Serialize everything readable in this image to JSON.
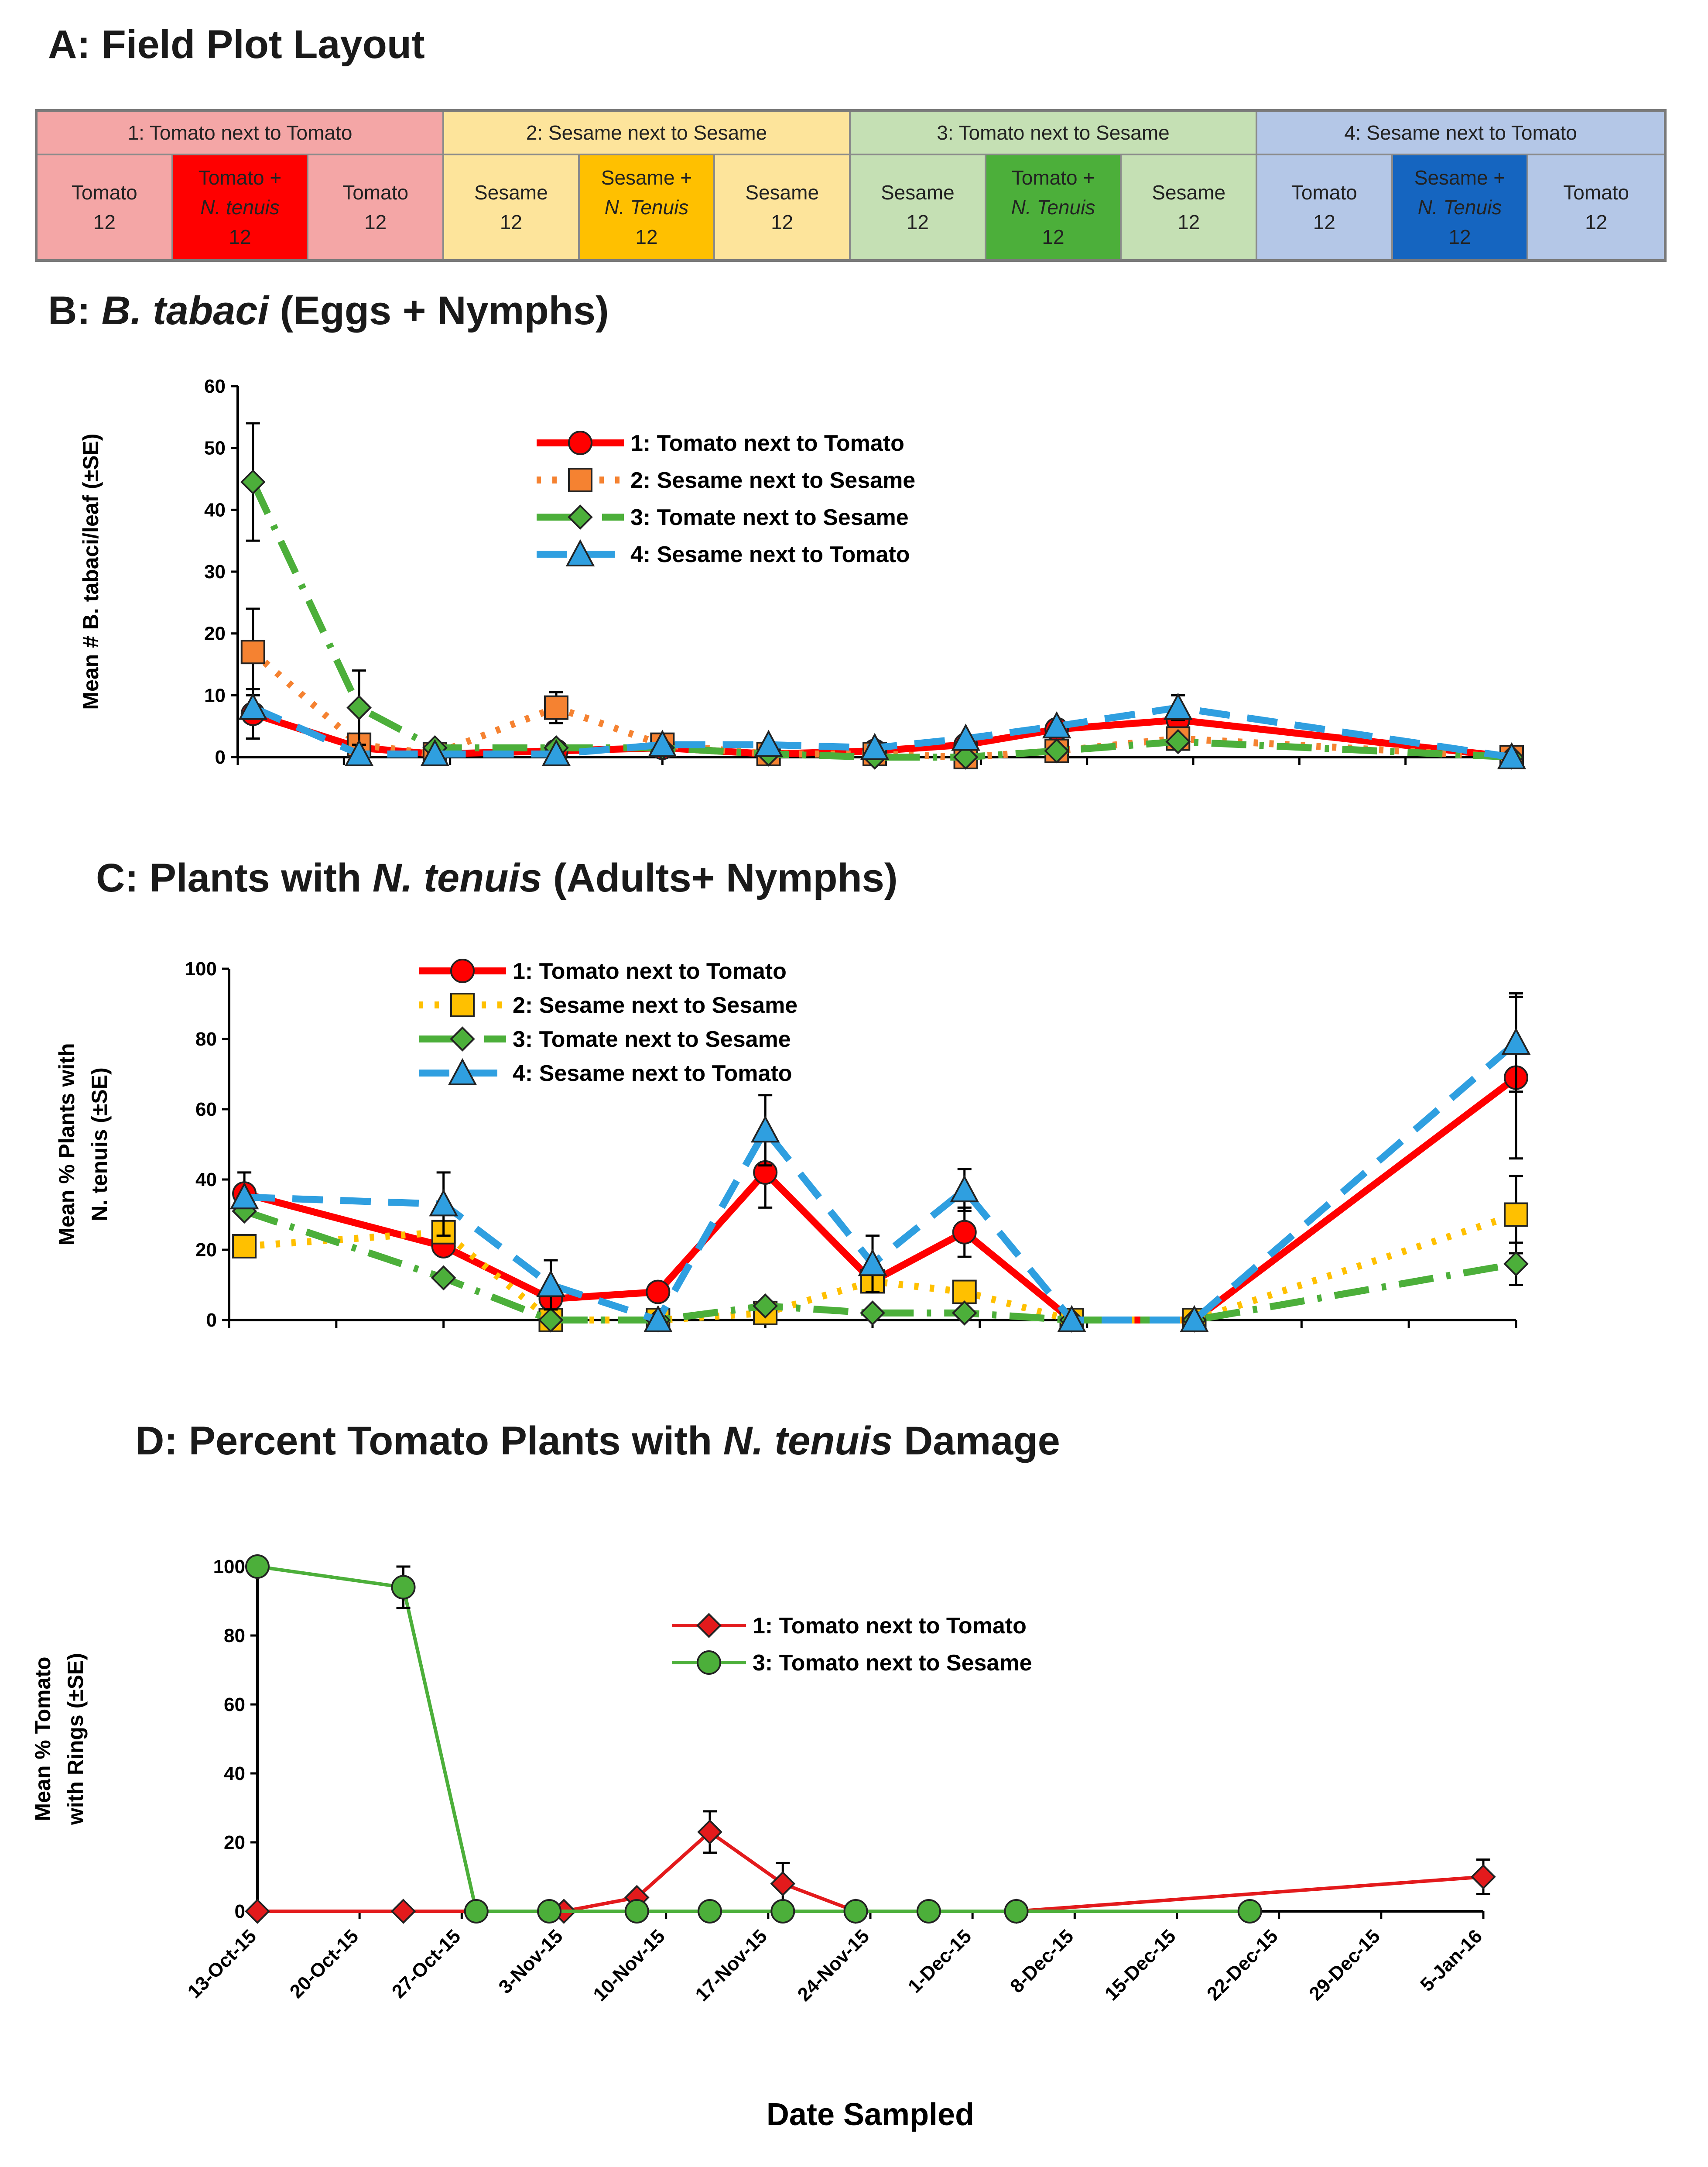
{
  "panel_a": {
    "title": "A: Field Plot Layout",
    "groups": [
      {
        "label": "1: Tomato next to Tomato",
        "cells": [
          {
            "line1": "Tomato",
            "line2": "",
            "line3": "12",
            "bg": "#f4a6a6"
          },
          {
            "line1": "Tomato +",
            "line2": "N. tenuis",
            "line3": "12",
            "bg": "#ff0000"
          },
          {
            "line1": "Tomato",
            "line2": "",
            "line3": "12",
            "bg": "#f4a6a6"
          }
        ],
        "head_bg": "#f4a6a6"
      },
      {
        "label": "2: Sesame next to Sesame",
        "cells": [
          {
            "line1": "Sesame",
            "line2": "",
            "line3": "12",
            "bg": "#fde49b"
          },
          {
            "line1": "Sesame +",
            "line2": "N. Tenuis",
            "line3": "12",
            "bg": "#ffc000"
          },
          {
            "line1": "Sesame",
            "line2": "",
            "line3": "12",
            "bg": "#fde49b"
          }
        ],
        "head_bg": "#fde49b"
      },
      {
        "label": "3: Tomato next to Sesame",
        "cells": [
          {
            "line1": "Sesame",
            "line2": "",
            "line3": "12",
            "bg": "#c5e0b4"
          },
          {
            "line1": "Tomato +",
            "line2": "N. Tenuis",
            "line3": "12",
            "bg": "#4caf3a"
          },
          {
            "line1": "Sesame",
            "line2": "",
            "line3": "12",
            "bg": "#c5e0b4"
          }
        ],
        "head_bg": "#c5e0b4"
      },
      {
        "label": "4: Sesame next to Tomato",
        "cells": [
          {
            "line1": "Tomato",
            "line2": "",
            "line3": "12",
            "bg": "#b4c7e7"
          },
          {
            "line1": "Sesame +",
            "line2": "N. Tenuis",
            "line3": "12",
            "bg": "#1565c0"
          },
          {
            "line1": "Tomato",
            "line2": "",
            "line3": "12",
            "bg": "#b4c7e7"
          }
        ],
        "head_bg": "#b4c7e7"
      }
    ]
  },
  "panel_b": {
    "title_prefix": "B: ",
    "title_italic": "B. tabaci",
    "title_suffix": " (Eggs + Nymphs)"
  },
  "panel_c": {
    "title_prefix": "C: Plants with ",
    "title_italic": "N. tenuis",
    "title_suffix": " (Adults+ Nymphs)"
  },
  "panel_d": {
    "title_prefix": "D: Percent Tomato Plants with ",
    "title_italic": "N. tenuis",
    "title_suffix": " Damage"
  },
  "chart_data": [
    {
      "type": "line",
      "title": "B: B. tabaci (Eggs + Nymphs)",
      "ylabel": "Mean # B. tabaci/leaf (±SE)",
      "ylim": [
        0,
        60
      ],
      "yticks": [
        0,
        10,
        20,
        30,
        40,
        50,
        60
      ],
      "xlim": [
        42290,
        42374
      ],
      "legend_position": "top-center",
      "series": [
        {
          "name": "1: Tomato next to Tomato",
          "color": "#ff0000",
          "marker": "circle",
          "dash": "solid",
          "x": [
            42291,
            42298,
            42303,
            42311,
            42318,
            42325,
            42332,
            42338,
            42344,
            42352,
            42374
          ],
          "y": [
            7,
            1.5,
            0.5,
            1,
            1.5,
            0.5,
            1,
            2,
            4.5,
            6,
            0
          ],
          "err": [
            4,
            0,
            0,
            0,
            0,
            0,
            0,
            0,
            0,
            0,
            0
          ]
        },
        {
          "name": "2: Sesame next to Sesame",
          "color": "#f58231",
          "marker": "square",
          "dash": "dotted",
          "x": [
            42291,
            42298,
            42303,
            42311,
            42318,
            42325,
            42332,
            42338,
            42344,
            42352,
            42374
          ],
          "y": [
            17,
            2,
            0.5,
            8,
            2,
            0.5,
            0.5,
            0,
            1,
            3,
            0
          ],
          "err": [
            7,
            0,
            0,
            2.5,
            0,
            0,
            0,
            0,
            0,
            0,
            0
          ]
        },
        {
          "name": "3: Tomate next to Sesame",
          "color": "#4caf3a",
          "marker": "diamond",
          "dash": "dashdot",
          "x": [
            42291,
            42298,
            42303,
            42311,
            42318,
            42325,
            42332,
            42338,
            42344,
            42352,
            42374
          ],
          "y": [
            44.5,
            8,
            1.5,
            1.5,
            1.5,
            0.5,
            0,
            0,
            1,
            2.5,
            0
          ],
          "err": [
            9.5,
            6,
            0,
            0,
            0,
            0,
            0,
            0,
            0,
            0,
            0
          ]
        },
        {
          "name": "4: Sesame next to Tomato",
          "color": "#2f9fe0",
          "marker": "triangle",
          "dash": "dashed",
          "x": [
            42291,
            42298,
            42303,
            42311,
            42318,
            42325,
            42332,
            42338,
            42344,
            42352,
            42374
          ],
          "y": [
            8,
            0.5,
            0.5,
            0.5,
            2,
            2,
            1.5,
            3,
            5,
            8,
            0
          ],
          "err": [
            0,
            0,
            0,
            0,
            0,
            0,
            0,
            0,
            0,
            2,
            0
          ]
        }
      ]
    },
    {
      "type": "line",
      "title": "C: Plants with N. tenuis (Adults+ Nymphs)",
      "ylabel": "Mean % Plants with N. tenuis (±SE)",
      "ylim": [
        0,
        100
      ],
      "yticks": [
        0,
        20,
        40,
        60,
        80,
        100
      ],
      "xlim": [
        42290,
        42374
      ],
      "legend_position": "top-center",
      "series": [
        {
          "name": "1: Tomato next to Tomato",
          "color": "#ff0000",
          "marker": "circle",
          "dash": "solid",
          "x": [
            42291,
            42304,
            42311,
            42318,
            42325,
            42332,
            42338,
            42345,
            42353,
            42374
          ],
          "y": [
            36,
            21,
            6,
            8,
            42,
            11,
            25,
            0,
            0,
            69
          ],
          "err": [
            6,
            0,
            0,
            0,
            10,
            0,
            7,
            0,
            0,
            23
          ]
        },
        {
          "name": "2: Sesame next to Sesame",
          "color": "#ffc000",
          "marker": "square",
          "dash": "dotted",
          "x": [
            42291,
            42304,
            42311,
            42318,
            42325,
            42332,
            42338,
            42345,
            42353,
            42374
          ],
          "y": [
            21,
            25,
            0,
            0,
            2,
            11,
            8,
            0,
            0,
            30
          ],
          "err": [
            0,
            0,
            0,
            0,
            0,
            0,
            0,
            0,
            0,
            11
          ]
        },
        {
          "name": "3: Tomate next to Sesame",
          "color": "#4caf3a",
          "marker": "diamond",
          "dash": "dashdot",
          "x": [
            42291,
            42304,
            42311,
            42318,
            42325,
            42332,
            42338,
            42345,
            42353,
            42374
          ],
          "y": [
            31,
            12,
            0,
            0,
            4,
            2,
            2,
            0,
            0,
            16
          ],
          "err": [
            0,
            0,
            0,
            0,
            0,
            0,
            0,
            0,
            0,
            6
          ]
        },
        {
          "name": "4: Sesame next to Tomato",
          "color": "#2f9fe0",
          "marker": "triangle",
          "dash": "dashed",
          "x": [
            42291,
            42304,
            42311,
            42318,
            42325,
            42332,
            42338,
            42345,
            42353,
            42374
          ],
          "y": [
            35,
            33,
            10,
            0,
            54,
            16,
            37,
            0,
            0,
            79
          ],
          "err": [
            0,
            9,
            7,
            0,
            10,
            8,
            6,
            0,
            0,
            14
          ]
        }
      ]
    },
    {
      "type": "line",
      "title": "D: Percent Tomato Plants with N. tenuis Damage",
      "ylabel": "Mean % Tomato with Rings (±SE)",
      "xlabel": "Date Sampled",
      "ylim": [
        0,
        100
      ],
      "yticks": [
        0,
        20,
        40,
        60,
        80,
        100
      ],
      "xlim": [
        42290,
        42374
      ],
      "xticks": [
        42290,
        42297,
        42304,
        42311,
        42318,
        42325,
        42332,
        42339,
        42346,
        42353,
        42360,
        42367,
        42374
      ],
      "xtick_labels": [
        "13-Oct-15",
        "20-Oct-15",
        "27-Oct-15",
        "3-Nov-15",
        "10-Nov-15",
        "17-Nov-15",
        "24-Nov-15",
        "1-Dec-15",
        "8-Dec-15",
        "15-Dec-15",
        "22-Dec-15",
        "29-Dec-15",
        "5-Jan-16"
      ],
      "legend_position": "top-center",
      "series": [
        {
          "name": "1: Tomato next to Tomato",
          "color": "#e31a1c",
          "marker": "diamond",
          "dash": "solid",
          "x": [
            42290,
            42300,
            42311,
            42316,
            42321,
            42326,
            42331,
            42342,
            42374
          ],
          "y": [
            0,
            0,
            0,
            4,
            23,
            8,
            0,
            0,
            10
          ],
          "err": [
            0,
            0,
            0,
            0,
            6,
            6,
            0,
            0,
            5
          ]
        },
        {
          "name": "3: Tomato next to Sesame",
          "color": "#4caf3a",
          "marker": "circle",
          "dash": "solid",
          "x": [
            42290,
            42300,
            42305,
            42310,
            42316,
            42321,
            42326,
            42331,
            42336,
            42342,
            42358
          ],
          "y": [
            100,
            94,
            0,
            0,
            0,
            0,
            0,
            0,
            0,
            0,
            0
          ],
          "err": [
            0,
            6,
            0,
            0,
            0,
            0,
            0,
            0,
            0,
            0,
            0
          ]
        }
      ]
    }
  ]
}
